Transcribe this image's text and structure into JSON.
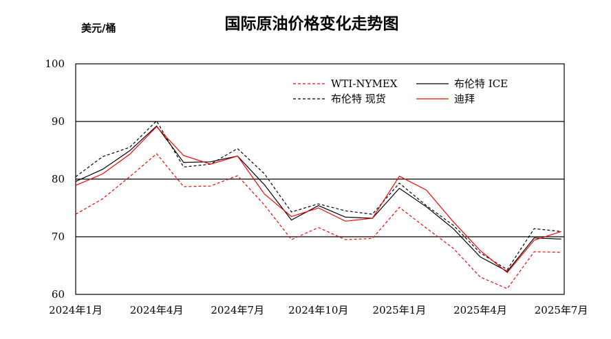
{
  "chart_data": {
    "type": "line",
    "title": "国际原油价格变化走势图",
    "unit_label": "美元/桶",
    "xlabel": "",
    "ylabel": "",
    "ylim": [
      60,
      100
    ],
    "yticks": [
      60,
      70,
      80,
      90,
      100
    ],
    "gridlines_y": [
      70,
      80,
      90
    ],
    "legend_position": "top-right",
    "x_tick_labels": [
      "2024年1月",
      "2024年4月",
      "2024年7月",
      "2024年10月",
      "2025年1月",
      "2025年4月",
      "2025年7月"
    ],
    "x": [
      "2024-01",
      "2024-02",
      "2024-03",
      "2024-04",
      "2024-05",
      "2024-06",
      "2024-07",
      "2024-08",
      "2024-09",
      "2024-10",
      "2024-11",
      "2024-12",
      "2025-01",
      "2025-02",
      "2025-03",
      "2025-04",
      "2025-05",
      "2025-06",
      "2025-07"
    ],
    "series": [
      {
        "name": "WTI-NYMEX",
        "color": "#ff0000",
        "dash": true,
        "values": [
          73.9,
          76.6,
          80.4,
          84.4,
          78.7,
          78.8,
          80.6,
          75.5,
          69.5,
          71.6,
          69.5,
          69.7,
          75.1,
          71.5,
          68.0,
          63.0,
          61.0,
          67.4,
          67.3
        ]
      },
      {
        "name": "布伦特 ICE",
        "color": "#000000",
        "dash": false,
        "values": [
          79.6,
          81.7,
          84.9,
          89.2,
          82.9,
          83.0,
          84.0,
          79.0,
          72.9,
          75.4,
          73.4,
          73.2,
          78.4,
          75.2,
          71.4,
          66.5,
          64.0,
          69.8,
          69.6
        ]
      },
      {
        "name": "布伦特 现货",
        "color": "#000000",
        "dash": true,
        "values": [
          80.4,
          83.9,
          85.5,
          90.1,
          82.1,
          82.6,
          85.3,
          80.9,
          74.3,
          75.7,
          74.5,
          73.9,
          79.3,
          75.4,
          72.0,
          67.2,
          64.3,
          71.4,
          70.9
        ]
      },
      {
        "name": "迪拜",
        "color": "#ff0000",
        "dash": false,
        "values": [
          78.9,
          80.9,
          84.3,
          89.1,
          84.1,
          82.6,
          84.0,
          77.4,
          73.5,
          75.0,
          72.7,
          73.2,
          80.5,
          78.1,
          72.6,
          67.6,
          63.8,
          69.4,
          70.9
        ]
      }
    ]
  }
}
